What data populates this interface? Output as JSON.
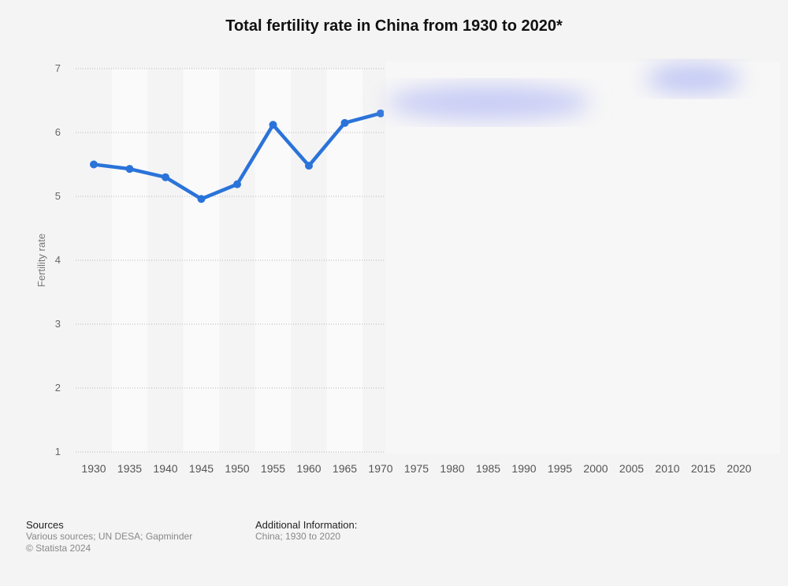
{
  "chart_data": {
    "type": "line",
    "title": "Total fertility rate in China from 1930 to 2020*",
    "ylabel": "Fertility rate",
    "xlabel": "",
    "ylim": [
      1,
      7
    ],
    "yticks": [
      1,
      2,
      3,
      4,
      5,
      6,
      7
    ],
    "x_tick_labels": [
      "1930",
      "1935",
      "1940",
      "1945",
      "1950",
      "1955",
      "1960",
      "1965",
      "1970",
      "1975",
      "1980",
      "1985",
      "1990",
      "1995",
      "2000",
      "2005",
      "2010",
      "2015",
      "2020"
    ],
    "series": [
      {
        "color": "#2a73d9",
        "x": [
          1930,
          1935,
          1940,
          1945,
          1950,
          1955,
          1960,
          1965,
          1970
        ],
        "y": [
          5.5,
          5.43,
          5.3,
          4.96,
          5.19,
          6.12,
          5.48,
          6.15,
          6.3
        ]
      }
    ],
    "grid": "horizontal dotted",
    "obscured_region": "1970-2020"
  },
  "footer": {
    "sources_heading": "Sources",
    "sources_text": "Various sources; UN DESA; Gapminder",
    "copyright": "© Statista 2024",
    "additional_heading": "Additional Information:",
    "additional_text": "China; 1930 to 2020"
  }
}
